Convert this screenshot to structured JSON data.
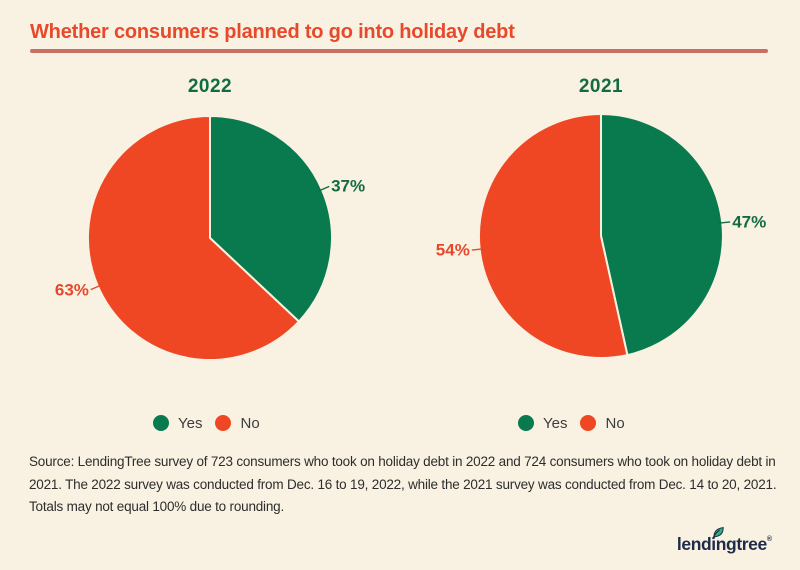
{
  "title": "Whether consumers planned to go into holiday debt",
  "theme": {
    "background": "#f9f2e2",
    "title_red": "#e8492b",
    "rule_color": "#c96f63",
    "green": "#087a4e",
    "red": "#ef4723",
    "green_label": "#136b42",
    "red_label": "#e5492b",
    "body_text": "#2d2d2d",
    "legend_text": "#3d3d3d",
    "logo_navy": "#1e2c49",
    "leaf_green": "#2fb277"
  },
  "legend": {
    "yes": "Yes",
    "no": "No"
  },
  "chart_data": [
    {
      "type": "pie",
      "title": "2022",
      "categories": [
        "Yes",
        "No"
      ],
      "values": [
        37,
        63
      ],
      "unit": "%",
      "start_angle": "top",
      "direction": "clockwise",
      "legend_position": "bottom",
      "slices": [
        {
          "name": "Yes",
          "value": 37,
          "display_label": "37%",
          "color": "#087a4e",
          "label_color": "#136b42"
        },
        {
          "name": "No",
          "value": 63,
          "display_label": "63%",
          "color": "#ef4723",
          "label_color": "#e5492b"
        }
      ]
    },
    {
      "type": "pie",
      "title": "2021",
      "categories": [
        "Yes",
        "No"
      ],
      "values": [
        47,
        54
      ],
      "unit": "%",
      "start_angle": "top",
      "direction": "clockwise",
      "legend_position": "bottom",
      "slices": [
        {
          "name": "Yes",
          "value": 47,
          "display_label": "47%",
          "color": "#087a4e",
          "label_color": "#136b42"
        },
        {
          "name": "No",
          "value": 54,
          "display_label": "54%",
          "color": "#ef4723",
          "label_color": "#e5492b"
        }
      ]
    }
  ],
  "source": {
    "lines": [
      "Source: LendingTree survey of 723 consumers who took on holiday debt in 2022 and 724 consumers who took on holiday debt in",
      "2021. The 2022 survey was conducted from Dec. 16 to 19, 2022, while the 2021 survey was conducted from Dec. 14 to 20, 2021.",
      "Totals may not equal 100% due to rounding."
    ]
  },
  "logo": {
    "text": "lendingtree",
    "mark": "®"
  }
}
